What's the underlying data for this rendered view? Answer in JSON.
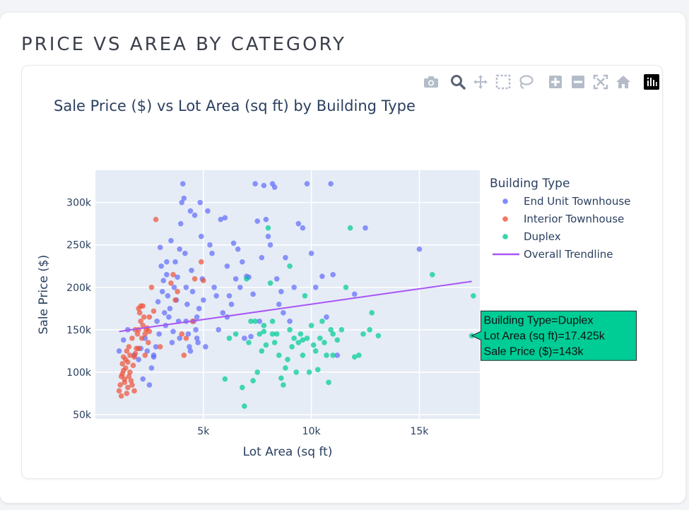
{
  "page": {
    "section_title": "PRICE VS AREA BY CATEGORY"
  },
  "toolbar": {
    "tools": [
      {
        "name": "camera-icon"
      },
      {
        "name": "zoom-icon"
      },
      {
        "name": "pan-icon"
      },
      {
        "name": "box-select-icon"
      },
      {
        "name": "lasso-select-icon"
      },
      {
        "name": "zoom-in-icon"
      },
      {
        "name": "zoom-out-icon"
      },
      {
        "name": "autoscale-icon"
      },
      {
        "name": "reset-axes-icon"
      },
      {
        "name": "plotly-logo-icon"
      }
    ]
  },
  "colors": {
    "plot_bg": "#e5ecf6",
    "grid": "#ffffff",
    "text": "#2a3f5f",
    "end_unit": "#636efa",
    "interior": "#ef553b",
    "duplex": "#00cc96",
    "trend": "#a855f7",
    "tooltip_bg": "#00cc96"
  },
  "chart_data": {
    "type": "scatter",
    "title": "Sale Price ($) vs Lot Area (sq ft) by Building Type",
    "xlabel": "Lot Area (sq ft)",
    "ylabel": "Sale Price ($)",
    "xlim": [
      0,
      17800
    ],
    "ylim": [
      45000,
      338000
    ],
    "xticks": [
      {
        "value": 5000,
        "label": "5k"
      },
      {
        "value": 10000,
        "label": "10k"
      },
      {
        "value": 15000,
        "label": "15k"
      }
    ],
    "yticks": [
      {
        "value": 50000,
        "label": "50k"
      },
      {
        "value": 100000,
        "label": "100k"
      },
      {
        "value": 150000,
        "label": "150k"
      },
      {
        "value": 200000,
        "label": "200k"
      },
      {
        "value": 250000,
        "label": "250k"
      },
      {
        "value": 300000,
        "label": "300k"
      }
    ],
    "legend": {
      "title": "Building Type",
      "position": "right"
    },
    "series": [
      {
        "name": "End Unit Townhouse",
        "color": "#636efa",
        "points": [
          [
            1100,
            125000
          ],
          [
            1300,
            138000
          ],
          [
            1500,
            150000
          ],
          [
            1800,
            120000
          ],
          [
            2000,
            115000
          ],
          [
            2100,
            128000
          ],
          [
            2200,
            92000
          ],
          [
            2300,
            140000
          ],
          [
            2400,
            125000
          ],
          [
            2500,
            85000
          ],
          [
            2600,
            105000
          ],
          [
            2700,
            118000
          ],
          [
            2800,
            130000
          ],
          [
            2850,
            160000
          ],
          [
            2900,
            183000
          ],
          [
            2950,
            145000
          ],
          [
            3000,
            247000
          ],
          [
            3050,
            225000
          ],
          [
            3100,
            195000
          ],
          [
            3150,
            208000
          ],
          [
            3200,
            170000
          ],
          [
            3250,
            155000
          ],
          [
            3300,
            215000
          ],
          [
            3350,
            190000
          ],
          [
            3400,
            165000
          ],
          [
            3450,
            175000
          ],
          [
            3500,
            255000
          ],
          [
            3550,
            135000
          ],
          [
            3600,
            148000
          ],
          [
            3650,
            200000
          ],
          [
            3700,
            230000
          ],
          [
            3750,
            185000
          ],
          [
            3800,
            212000
          ],
          [
            3850,
            160000
          ],
          [
            3900,
            245000
          ],
          [
            3950,
            275000
          ],
          [
            4000,
            300000
          ],
          [
            4050,
            322000
          ],
          [
            4100,
            305000
          ],
          [
            4150,
            240000
          ],
          [
            4200,
            200000
          ],
          [
            4250,
            180000
          ],
          [
            4300,
            145000
          ],
          [
            4350,
            130000
          ],
          [
            4400,
            290000
          ],
          [
            4450,
            220000
          ],
          [
            4500,
            195000
          ],
          [
            4550,
            160000
          ],
          [
            4600,
            285000
          ],
          [
            4650,
            150000
          ],
          [
            4700,
            140000
          ],
          [
            4750,
            135000
          ],
          [
            4800,
            175000
          ],
          [
            4850,
            300000
          ],
          [
            4900,
            260000
          ],
          [
            4950,
            210000
          ],
          [
            5000,
            185000
          ],
          [
            5100,
            130000
          ],
          [
            5200,
            290000
          ],
          [
            5300,
            250000
          ],
          [
            5400,
            240000
          ],
          [
            5500,
            200000
          ],
          [
            5600,
            190000
          ],
          [
            5700,
            150000
          ],
          [
            5800,
            280000
          ],
          [
            6000,
            282000
          ],
          [
            6100,
            225000
          ],
          [
            6200,
            190000
          ],
          [
            6300,
            180000
          ],
          [
            6400,
            252000
          ],
          [
            6500,
            210000
          ],
          [
            6600,
            245000
          ],
          [
            6700,
            200000
          ],
          [
            6800,
            230000
          ],
          [
            6900,
            140000
          ],
          [
            7000,
            213000
          ],
          [
            7100,
            212000
          ],
          [
            7200,
            142000
          ],
          [
            7300,
            192000
          ],
          [
            7400,
            322000
          ],
          [
            7500,
            278000
          ],
          [
            7600,
            160000
          ],
          [
            7700,
            235000
          ],
          [
            7800,
            320000
          ],
          [
            7900,
            280000
          ],
          [
            8000,
            260000
          ],
          [
            8100,
            250000
          ],
          [
            8200,
            322000
          ],
          [
            8300,
            318000
          ],
          [
            8400,
            210000
          ],
          [
            8500,
            180000
          ],
          [
            8600,
            195000
          ],
          [
            8700,
            170000
          ],
          [
            8800,
            235000
          ],
          [
            9000,
            160000
          ],
          [
            9200,
            200000
          ],
          [
            9400,
            275000
          ],
          [
            9600,
            270000
          ],
          [
            9800,
            322000
          ],
          [
            10000,
            240000
          ],
          [
            10200,
            200000
          ],
          [
            10500,
            213000
          ],
          [
            10700,
            165000
          ],
          [
            10900,
            322000
          ],
          [
            11000,
            215000
          ],
          [
            11200,
            120000
          ],
          [
            12000,
            192000
          ],
          [
            12500,
            270000
          ],
          [
            15000,
            245000
          ],
          [
            6100,
            165000
          ],
          [
            5900,
            170000
          ],
          [
            3300,
            230000
          ],
          [
            2700,
            120000
          ],
          [
            4200,
            160000
          ],
          [
            4700,
            165000
          ],
          [
            4400,
            125000
          ],
          [
            3900,
            140000
          ]
        ]
      },
      {
        "name": "Interior Townhouse",
        "color": "#ef553b",
        "points": [
          [
            1100,
            78000
          ],
          [
            1150,
            85000
          ],
          [
            1200,
            95000
          ],
          [
            1200,
            72000
          ],
          [
            1250,
            110000
          ],
          [
            1250,
            98000
          ],
          [
            1300,
            102000
          ],
          [
            1300,
            118000
          ],
          [
            1350,
            88000
          ],
          [
            1350,
            92000
          ],
          [
            1400,
            105000
          ],
          [
            1400,
            115000
          ],
          [
            1450,
            75000
          ],
          [
            1450,
            125000
          ],
          [
            1500,
            82000
          ],
          [
            1500,
            112000
          ],
          [
            1550,
            130000
          ],
          [
            1550,
            95000
          ],
          [
            1600,
            100000
          ],
          [
            1600,
            120000
          ],
          [
            1650,
            90000
          ],
          [
            1700,
            85000
          ],
          [
            1700,
            140000
          ],
          [
            1750,
            108000
          ],
          [
            1800,
            78000
          ],
          [
            1800,
            118000
          ],
          [
            1850,
            122000
          ],
          [
            1900,
            128000
          ],
          [
            1950,
            145000
          ],
          [
            2000,
            150000
          ],
          [
            2000,
            175000
          ],
          [
            2050,
            170000
          ],
          [
            2100,
            178000
          ],
          [
            2100,
            160000
          ],
          [
            2150,
            140000
          ],
          [
            2200,
            155000
          ],
          [
            2250,
            165000
          ],
          [
            2300,
            145000
          ],
          [
            2300,
            120000
          ],
          [
            2350,
            150000
          ],
          [
            2400,
            152000
          ],
          [
            2450,
            135000
          ],
          [
            2500,
            148000
          ],
          [
            2500,
            165000
          ],
          [
            2600,
            200000
          ],
          [
            2700,
            172000
          ],
          [
            2800,
            280000
          ],
          [
            3000,
            130000
          ],
          [
            3500,
            205000
          ],
          [
            3600,
            215000
          ],
          [
            3700,
            185000
          ],
          [
            3800,
            195000
          ],
          [
            4000,
            145000
          ],
          [
            4100,
            120000
          ],
          [
            4200,
            140000
          ],
          [
            4500,
            160000
          ],
          [
            4600,
            210000
          ],
          [
            4900,
            230000
          ],
          [
            5000,
            208000
          ],
          [
            2200,
            178000
          ],
          [
            1850,
            150000
          ],
          [
            2000,
            128000
          ]
        ]
      },
      {
        "name": "Duplex",
        "color": "#00cc96",
        "points": [
          [
            6000,
            92000
          ],
          [
            6200,
            140000
          ],
          [
            6500,
            145000
          ],
          [
            6800,
            82000
          ],
          [
            6900,
            60000
          ],
          [
            7000,
            210000
          ],
          [
            7100,
            135000
          ],
          [
            7200,
            160000
          ],
          [
            7300,
            90000
          ],
          [
            7400,
            160000
          ],
          [
            7500,
            100000
          ],
          [
            7600,
            145000
          ],
          [
            7700,
            125000
          ],
          [
            7800,
            155000
          ],
          [
            7900,
            132000
          ],
          [
            8000,
            270000
          ],
          [
            8100,
            205000
          ],
          [
            8200,
            160000
          ],
          [
            8300,
            135000
          ],
          [
            8400,
            145000
          ],
          [
            8500,
            120000
          ],
          [
            8600,
            93000
          ],
          [
            8700,
            85000
          ],
          [
            8800,
            105000
          ],
          [
            8900,
            115000
          ],
          [
            9000,
            225000
          ],
          [
            9100,
            130000
          ],
          [
            9200,
            140000
          ],
          [
            9300,
            100000
          ],
          [
            9400,
            135000
          ],
          [
            9500,
            145000
          ],
          [
            9600,
            120000
          ],
          [
            9700,
            190000
          ],
          [
            9800,
            140000
          ],
          [
            9900,
            100000
          ],
          [
            10000,
            155000
          ],
          [
            10100,
            132000
          ],
          [
            10200,
            125000
          ],
          [
            10300,
            103000
          ],
          [
            10500,
            160000
          ],
          [
            10600,
            135000
          ],
          [
            10700,
            120000
          ],
          [
            10800,
            88000
          ],
          [
            10900,
            150000
          ],
          [
            11000,
            145000
          ],
          [
            11200,
            138000
          ],
          [
            11400,
            150000
          ],
          [
            11600,
            200000
          ],
          [
            11800,
            270000
          ],
          [
            12000,
            118000
          ],
          [
            12200,
            120000
          ],
          [
            12400,
            145000
          ],
          [
            12700,
            150000
          ],
          [
            12800,
            170000
          ],
          [
            13100,
            143000
          ],
          [
            15600,
            215000
          ],
          [
            17500,
            190000
          ],
          [
            17425,
            143000
          ],
          [
            10400,
            140000
          ],
          [
            9000,
            150000
          ],
          [
            8200,
            145000
          ],
          [
            7800,
            148000
          ],
          [
            9600,
            138000
          ],
          [
            11000,
            120000
          ]
        ]
      }
    ],
    "trendline": {
      "name": "Overall Trendline",
      "x": [
        1100,
        17425
      ],
      "y": [
        148000,
        207000
      ]
    },
    "hover": {
      "lines": [
        "Building Type=Duplex",
        "Lot Area (sq ft)=17.425k",
        "Sale Price ($)=143k"
      ],
      "point": [
        17425,
        143000
      ]
    }
  }
}
